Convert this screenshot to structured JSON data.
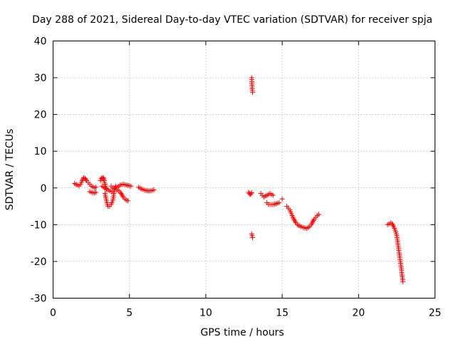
{
  "chart_data": {
    "type": "scatter",
    "title": "Day 288 of 2021, Sidereal Day-to-day VTEC variation (SDTVAR) for receiver spja",
    "xlabel": "GPS time / hours",
    "ylabel": "SDTVAR / TECUs",
    "xlim": [
      0,
      25
    ],
    "ylim": [
      -30,
      40
    ],
    "xticks": [
      0,
      5,
      10,
      15,
      20,
      25
    ],
    "yticks": [
      -30,
      -20,
      -10,
      0,
      10,
      20,
      30,
      40
    ],
    "xtick_labels": [
      "0",
      "5",
      "10",
      "15",
      "20",
      "25"
    ],
    "ytick_labels": [
      "-30",
      "-20",
      "-10",
      "0",
      "10",
      "20",
      "30",
      "40"
    ],
    "grid": true,
    "marker": "+",
    "series": [
      {
        "name": "SDTVAR",
        "color": "#ff0000",
        "tracks": [
          [
            [
              1.4,
              1.2
            ],
            [
              1.5,
              1.0
            ],
            [
              1.6,
              0.8
            ],
            [
              1.7,
              0.5
            ],
            [
              1.8,
              1.0
            ],
            [
              1.9,
              2.0
            ],
            [
              2.0,
              2.8
            ],
            [
              2.1,
              2.6
            ],
            [
              2.2,
              2.0
            ],
            [
              2.3,
              1.5
            ],
            [
              2.4,
              1.0
            ],
            [
              2.5,
              0.5
            ],
            [
              2.6,
              0.3
            ],
            [
              2.7,
              0.0
            ],
            [
              2.8,
              0.2
            ]
          ],
          [
            [
              2.4,
              -1.0
            ],
            [
              2.5,
              -1.2
            ],
            [
              2.6,
              -1.3
            ],
            [
              2.7,
              -1.4
            ],
            [
              2.8,
              -1.2
            ]
          ],
          [
            [
              3.1,
              2.0
            ],
            [
              3.15,
              2.5
            ],
            [
              3.2,
              2.8
            ],
            [
              3.25,
              2.5
            ],
            [
              3.3,
              2.8
            ],
            [
              3.35,
              2.0
            ],
            [
              3.4,
              1.0
            ],
            [
              3.45,
              0.0
            ],
            [
              3.5,
              -0.5
            ]
          ],
          [
            [
              3.2,
              0.5
            ],
            [
              3.3,
              0.2
            ],
            [
              3.4,
              0.0
            ],
            [
              3.5,
              -0.2
            ],
            [
              3.6,
              -0.5
            ],
            [
              3.7,
              -0.8
            ],
            [
              3.8,
              -1.0
            ],
            [
              3.9,
              -1.0
            ]
          ],
          [
            [
              3.4,
              -1.5
            ],
            [
              3.45,
              -2.5
            ],
            [
              3.5,
              -3.5
            ],
            [
              3.55,
              -4.5
            ],
            [
              3.6,
              -5.0
            ],
            [
              3.7,
              -5.0
            ],
            [
              3.8,
              -4.5
            ],
            [
              3.9,
              -3.5
            ],
            [
              3.95,
              -2.5
            ],
            [
              4.0,
              -1.0
            ],
            [
              4.05,
              0.0
            ],
            [
              4.1,
              0.5
            ]
          ],
          [
            [
              3.8,
              0.5
            ],
            [
              3.9,
              0.0
            ],
            [
              4.0,
              -0.2
            ],
            [
              4.2,
              0.2
            ],
            [
              4.4,
              0.8
            ],
            [
              4.6,
              1.0
            ],
            [
              4.8,
              0.8
            ],
            [
              5.0,
              0.6
            ],
            [
              5.1,
              0.5
            ]
          ],
          [
            [
              4.2,
              -0.5
            ],
            [
              4.3,
              -0.8
            ],
            [
              4.4,
              -1.2
            ],
            [
              4.5,
              -1.8
            ],
            [
              4.6,
              -2.5
            ],
            [
              4.7,
              -3.0
            ],
            [
              4.8,
              -3.3
            ],
            [
              4.9,
              -3.5
            ]
          ],
          [
            [
              5.6,
              0.2
            ],
            [
              5.8,
              -0.3
            ],
            [
              6.0,
              -0.6
            ],
            [
              6.2,
              -0.8
            ],
            [
              6.4,
              -0.8
            ],
            [
              6.6,
              -0.5
            ]
          ],
          [
            [
              12.8,
              -1.2
            ],
            [
              12.85,
              -1.5
            ],
            [
              12.9,
              -1.8
            ],
            [
              12.95,
              -1.6
            ],
            [
              13.0,
              -1.3
            ]
          ],
          [
            [
              13.0,
              30.0
            ],
            [
              13.02,
              28.0
            ],
            [
              13.04,
              27.0
            ],
            [
              13.06,
              26.0
            ]
          ],
          [
            [
              13.0,
              -12.5
            ],
            [
              13.03,
              -13.0
            ],
            [
              13.06,
              -13.5
            ]
          ],
          [
            [
              13.6,
              -1.5
            ],
            [
              13.7,
              -2.0
            ],
            [
              13.8,
              -2.5
            ],
            [
              13.9,
              -2.2
            ],
            [
              14.0,
              -2.0
            ],
            [
              14.1,
              -1.8
            ],
            [
              14.2,
              -1.5
            ],
            [
              14.3,
              -1.8
            ],
            [
              14.4,
              -2.0
            ]
          ],
          [
            [
              14.0,
              -4.0
            ],
            [
              14.1,
              -4.5
            ],
            [
              14.2,
              -4.5
            ],
            [
              14.4,
              -4.5
            ],
            [
              14.6,
              -4.3
            ],
            [
              14.8,
              -4.0
            ]
          ],
          [
            [
              15.0,
              -3.0
            ]
          ],
          [
            [
              15.3,
              -5.0
            ],
            [
              15.4,
              -5.5
            ],
            [
              15.5,
              -6.0
            ],
            [
              15.6,
              -7.0
            ],
            [
              15.7,
              -8.0
            ],
            [
              15.8,
              -8.8
            ],
            [
              15.9,
              -9.5
            ],
            [
              16.0,
              -10.0
            ],
            [
              16.2,
              -10.5
            ],
            [
              16.4,
              -10.8
            ],
            [
              16.6,
              -11.0
            ],
            [
              16.8,
              -10.5
            ],
            [
              16.9,
              -10.0
            ],
            [
              17.0,
              -9.2
            ],
            [
              17.1,
              -8.5
            ],
            [
              17.2,
              -8.0
            ],
            [
              17.3,
              -7.5
            ],
            [
              17.4,
              -7.2
            ]
          ],
          [
            [
              21.9,
              -10.0
            ],
            [
              22.0,
              -9.8
            ],
            [
              22.1,
              -9.5
            ],
            [
              22.2,
              -9.8
            ],
            [
              22.3,
              -10.5
            ],
            [
              22.4,
              -11.5
            ],
            [
              22.5,
              -13.0
            ],
            [
              22.55,
              -14.5
            ],
            [
              22.6,
              -16.0
            ],
            [
              22.65,
              -17.5
            ],
            [
              22.7,
              -19.0
            ],
            [
              22.75,
              -20.5
            ],
            [
              22.8,
              -22.0
            ],
            [
              22.85,
              -24.0
            ],
            [
              22.9,
              -25.5
            ]
          ]
        ]
      }
    ]
  }
}
